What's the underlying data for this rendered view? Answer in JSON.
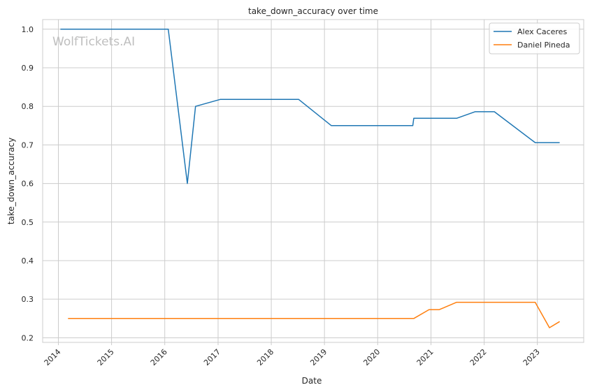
{
  "watermark": "WolfTickets.AI",
  "chart_data": {
    "type": "line",
    "title": "take_down_accuracy over time",
    "xlabel": "Date",
    "ylabel": "take_down_accuracy",
    "xlim": [
      "2013-09-15",
      "2023-11-15"
    ],
    "ylim": [
      0.188,
      1.025
    ],
    "x_ticks": [
      "2014",
      "2015",
      "2016",
      "2017",
      "2018",
      "2019",
      "2020",
      "2021",
      "2022",
      "2023"
    ],
    "y_ticks": [
      "0.2",
      "0.3",
      "0.4",
      "0.5",
      "0.6",
      "0.7",
      "0.8",
      "0.9",
      "1.0"
    ],
    "grid": true,
    "legend_position": "top-right",
    "series": [
      {
        "name": "Alex Caceres",
        "color": "#1f77b4",
        "points": [
          [
            "2014-01-15",
            1.0
          ],
          [
            "2016-01-25",
            1.0
          ],
          [
            "2016-06-04",
            0.6
          ],
          [
            "2016-07-30",
            0.8
          ],
          [
            "2017-01-15",
            0.818
          ],
          [
            "2018-07-08",
            0.818
          ],
          [
            "2019-02-17",
            0.75
          ],
          [
            "2020-08-29",
            0.75
          ],
          [
            "2020-09-05",
            0.769
          ],
          [
            "2021-06-26",
            0.769
          ],
          [
            "2021-10-30",
            0.786
          ],
          [
            "2022-03-12",
            0.786
          ],
          [
            "2022-12-17",
            0.706
          ],
          [
            "2023-06-03",
            0.706
          ]
        ]
      },
      {
        "name": "Daniel Pineda",
        "color": "#ff7f0e",
        "points": [
          [
            "2014-03-08",
            0.25
          ],
          [
            "2020-09-05",
            0.25
          ],
          [
            "2020-12-19",
            0.273
          ],
          [
            "2021-02-27",
            0.273
          ],
          [
            "2021-06-26",
            0.292
          ],
          [
            "2022-12-17",
            0.292
          ],
          [
            "2023-03-25",
            0.226
          ],
          [
            "2023-06-03",
            0.242
          ]
        ]
      }
    ]
  }
}
